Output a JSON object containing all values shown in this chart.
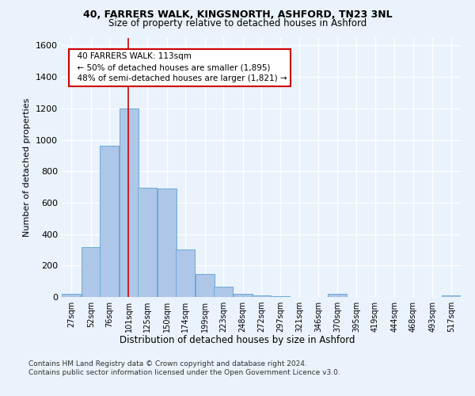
{
  "title1": "40, FARRERS WALK, KINGSNORTH, ASHFORD, TN23 3NL",
  "title2": "Size of property relative to detached houses in Ashford",
  "xlabel": "Distribution of detached houses by size in Ashford",
  "ylabel": "Number of detached properties",
  "bar_color": "#aec6e8",
  "bar_edge_color": "#6aaad4",
  "marker_value": 113,
  "annotation_line1": "40 FARRERS WALK: 113sqm",
  "annotation_line2": "← 50% of detached houses are smaller (1,895)",
  "annotation_line3": "48% of semi-detached houses are larger (1,821) →",
  "footer1": "Contains HM Land Registry data © Crown copyright and database right 2024.",
  "footer2": "Contains public sector information licensed under the Open Government Licence v3.0.",
  "bins": [
    27,
    52,
    76,
    101,
    125,
    150,
    174,
    199,
    223,
    248,
    272,
    297,
    321,
    346,
    370,
    395,
    419,
    444,
    468,
    493,
    517
  ],
  "counts": [
    20,
    315,
    960,
    1200,
    695,
    690,
    300,
    145,
    65,
    20,
    10,
    5,
    0,
    0,
    20,
    0,
    0,
    0,
    0,
    0,
    10
  ],
  "ylim": [
    0,
    1650
  ],
  "yticks": [
    0,
    200,
    400,
    600,
    800,
    1000,
    1200,
    1400,
    1600
  ],
  "bg_color": "#eaf2fb",
  "plot_bg_color": "#eaf2fb",
  "grid_color": "#ffffff",
  "red_line_color": "#cc0000",
  "annotation_box_color": "#ffffff",
  "annotation_border_color": "#cc0000"
}
